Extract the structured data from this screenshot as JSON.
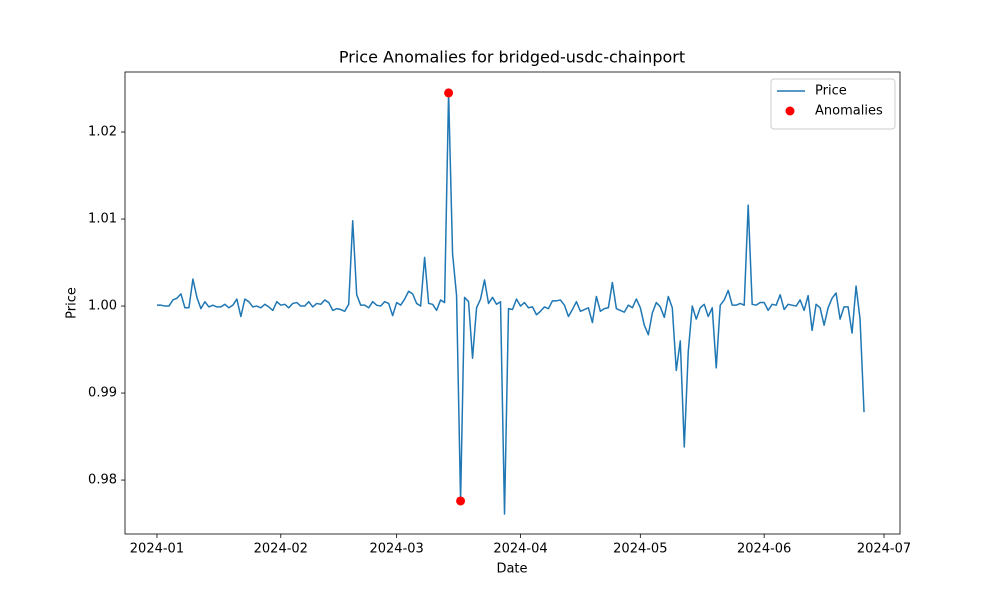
{
  "chart_data": {
    "type": "line",
    "title": "Price Anomalies for bridged-usdc-chainport",
    "x_label": "Date",
    "y_label": "Price",
    "xlim": [
      "2023-12-24",
      "2024-07-05"
    ],
    "xticks": [
      {
        "value": "2024-01-01",
        "label": "2024-01"
      },
      {
        "value": "2024-02-01",
        "label": "2024-02"
      },
      {
        "value": "2024-03-01",
        "label": "2024-03"
      },
      {
        "value": "2024-04-01",
        "label": "2024-04"
      },
      {
        "value": "2024-05-01",
        "label": "2024-05"
      },
      {
        "value": "2024-06-01",
        "label": "2024-06"
      },
      {
        "value": "2024-07-01",
        "label": "2024-07"
      }
    ],
    "ylim": [
      0.9738,
      1.0269
    ],
    "yticks": [
      0.98,
      0.99,
      {
        "value": 1.0,
        "label": "1.00"
      },
      1.01,
      1.02
    ],
    "grid": false,
    "legend": "upper right",
    "series": [
      {
        "name": "Price",
        "type": "line",
        "color": "#1f77b4",
        "x": [
          "2024-01-01",
          "2024-01-02",
          "2024-01-03",
          "2024-01-04",
          "2024-01-05",
          "2024-01-06",
          "2024-01-07",
          "2024-01-08",
          "2024-01-09",
          "2024-01-10",
          "2024-01-11",
          "2024-01-12",
          "2024-01-13",
          "2024-01-14",
          "2024-01-15",
          "2024-01-16",
          "2024-01-17",
          "2024-01-18",
          "2024-01-19",
          "2024-01-20",
          "2024-01-21",
          "2024-01-22",
          "2024-01-23",
          "2024-01-24",
          "2024-01-25",
          "2024-01-26",
          "2024-01-27",
          "2024-01-28",
          "2024-01-29",
          "2024-01-30",
          "2024-01-31",
          "2024-02-01",
          "2024-02-02",
          "2024-02-03",
          "2024-02-04",
          "2024-02-05",
          "2024-02-06",
          "2024-02-07",
          "2024-02-08",
          "2024-02-09",
          "2024-02-10",
          "2024-02-11",
          "2024-02-12",
          "2024-02-13",
          "2024-02-14",
          "2024-02-15",
          "2024-02-16",
          "2024-02-17",
          "2024-02-18",
          "2024-02-19",
          "2024-02-20",
          "2024-02-21",
          "2024-02-22",
          "2024-02-23",
          "2024-02-24",
          "2024-02-25",
          "2024-02-26",
          "2024-02-27",
          "2024-02-28",
          "2024-02-29",
          "2024-03-01",
          "2024-03-02",
          "2024-03-03",
          "2024-03-04",
          "2024-03-05",
          "2024-03-06",
          "2024-03-07",
          "2024-03-08",
          "2024-03-09",
          "2024-03-10",
          "2024-03-11",
          "2024-03-12",
          "2024-03-13",
          "2024-03-14",
          "2024-03-15",
          "2024-03-16",
          "2024-03-17",
          "2024-03-18",
          "2024-03-19",
          "2024-03-20",
          "2024-03-21",
          "2024-03-22",
          "2024-03-23",
          "2024-03-24",
          "2024-03-25",
          "2024-03-26",
          "2024-03-27",
          "2024-03-28",
          "2024-03-29",
          "2024-03-30",
          "2024-03-31",
          "2024-04-01",
          "2024-04-02",
          "2024-04-03",
          "2024-04-04",
          "2024-04-05",
          "2024-04-06",
          "2024-04-07",
          "2024-04-08",
          "2024-04-09",
          "2024-04-10",
          "2024-04-11",
          "2024-04-12",
          "2024-04-13",
          "2024-04-14",
          "2024-04-15",
          "2024-04-16",
          "2024-04-17",
          "2024-04-18",
          "2024-04-19",
          "2024-04-20",
          "2024-04-21",
          "2024-04-22",
          "2024-04-23",
          "2024-04-24",
          "2024-04-25",
          "2024-04-26",
          "2024-04-27",
          "2024-04-28",
          "2024-04-29",
          "2024-04-30",
          "2024-05-01",
          "2024-05-02",
          "2024-05-03",
          "2024-05-04",
          "2024-05-05",
          "2024-05-06",
          "2024-05-07",
          "2024-05-08",
          "2024-05-09",
          "2024-05-10",
          "2024-05-11",
          "2024-05-12",
          "2024-05-13",
          "2024-05-14",
          "2024-05-15",
          "2024-05-16",
          "2024-05-17",
          "2024-05-18",
          "2024-05-19",
          "2024-05-20",
          "2024-05-21",
          "2024-05-22",
          "2024-05-23",
          "2024-05-24",
          "2024-05-25",
          "2024-05-26",
          "2024-05-27",
          "2024-05-28",
          "2024-05-29",
          "2024-05-30",
          "2024-05-31",
          "2024-06-01",
          "2024-06-02",
          "2024-06-03",
          "2024-06-04",
          "2024-06-05",
          "2024-06-06",
          "2024-06-07",
          "2024-06-08",
          "2024-06-09",
          "2024-06-10",
          "2024-06-11",
          "2024-06-12",
          "2024-06-13",
          "2024-06-14",
          "2024-06-15",
          "2024-06-16",
          "2024-06-17",
          "2024-06-18",
          "2024-06-19",
          "2024-06-20",
          "2024-06-21",
          "2024-06-22",
          "2024-06-23",
          "2024-06-24",
          "2024-06-25",
          "2024-06-26"
        ],
        "values": [
          1.0001,
          1.0001,
          1.0,
          1.0,
          1.0007,
          1.0009,
          1.0014,
          0.9998,
          0.9998,
          1.0031,
          1.001,
          0.9997,
          1.0005,
          0.9999,
          1.0001,
          0.9999,
          0.9999,
          1.0002,
          0.9998,
          1.0001,
          1.0008,
          0.9988,
          1.0008,
          1.0005,
          0.9999,
          1.0,
          0.9998,
          1.0002,
          0.9999,
          0.9995,
          1.0005,
          1.0001,
          1.0002,
          0.9998,
          1.0003,
          1.0004,
          1.0,
          1.0,
          1.0005,
          0.9999,
          1.0003,
          1.0002,
          1.0007,
          1.0004,
          0.9995,
          0.9997,
          0.9996,
          0.9994,
          1.0002,
          1.0098,
          1.0013,
          1.0001,
          1.0001,
          0.9998,
          1.0005,
          1.0001,
          1.0,
          1.0005,
          1.0003,
          0.9989,
          1.0004,
          1.0001,
          1.0008,
          1.0017,
          1.0014,
          1.0003,
          1.0,
          1.0056,
          1.0003,
          1.0002,
          0.9995,
          1.0007,
          1.0004,
          1.0245,
          1.006,
          1.0012,
          0.9776,
          1.001,
          1.0005,
          0.994,
          0.9998,
          1.0008,
          1.003,
          1.0003,
          1.001,
          1.0002,
          1.0005,
          0.9761,
          0.9997,
          0.9996,
          1.0008,
          1.0,
          1.0004,
          0.9998,
          0.9999,
          0.999,
          0.9994,
          0.9999,
          0.9997,
          1.0006,
          1.0006,
          1.0007,
          1.0001,
          0.9988,
          0.9996,
          1.0005,
          0.9994,
          0.9996,
          0.9998,
          0.9981,
          1.0011,
          0.9994,
          0.9997,
          0.9998,
          1.0027,
          0.9997,
          0.9995,
          0.9993,
          1.0001,
          0.9998,
          1.0008,
          0.9998,
          0.9978,
          0.9967,
          0.9992,
          1.0004,
          0.9999,
          0.9987,
          1.0011,
          0.9998,
          0.9926,
          0.996,
          0.9838,
          0.9948,
          1.0,
          0.9985,
          0.9998,
          1.0002,
          0.9988,
          0.9998,
          0.9929,
          1.0001,
          1.0007,
          1.0018,
          1.0001,
          1.0001,
          1.0003,
          1.0001,
          1.0116,
          1.0002,
          1.0001,
          1.0004,
          1.0004,
          0.9995,
          1.0002,
          1.0001,
          1.0013,
          0.9996,
          1.0002,
          1.0001,
          1.0,
          1.0007,
          0.9995,
          1.0012,
          0.9972,
          1.0002,
          0.9998,
          0.9978,
          0.9998,
          1.0009,
          1.0015,
          0.9985,
          0.9999,
          0.9999,
          0.9969,
          1.0023,
          0.9985,
          0.9878
        ]
      },
      {
        "name": "Anomalies",
        "type": "scatter",
        "color": "#ff0000",
        "x": [
          "2024-03-14",
          "2024-03-17"
        ],
        "values": [
          1.0245,
          0.9776
        ]
      }
    ]
  }
}
